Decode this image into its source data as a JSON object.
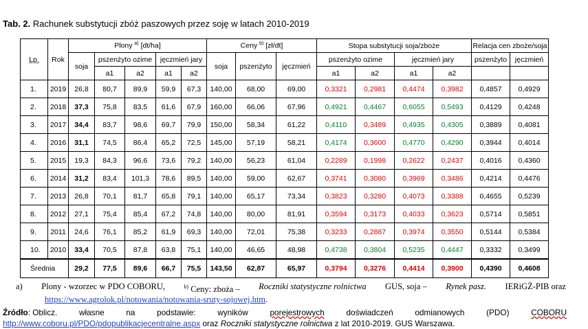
{
  "title": {
    "label": "Tab. 2.",
    "text": "Rachunek substytucji zbóż paszowych przez soję w latach 2010-2019"
  },
  "headers": {
    "lp": "Lp.",
    "rok": "Rok",
    "plony": "Plony",
    "plony_sup": "a)",
    "plony_unit": "[dt/ha]",
    "ceny": "Ceny",
    "ceny_sup": "b)",
    "ceny_unit": "[zł/dt]",
    "stopa": "Stopa substytucji soja/zboże",
    "relacja": "Relacja cen zboże/soja",
    "soja": "soja",
    "pszenzyto_ozime": "pszenżyto ozime",
    "jeczmien_jary": "jęczmień jary",
    "pszenzyto": "pszenżyto",
    "jeczmien": "jęczmień",
    "a1": "a1",
    "a2": "a2"
  },
  "rows": [
    {
      "lp": "1.",
      "rok": "2019",
      "soja": "26,8",
      "po_a1": "80,7",
      "po_a2": "89,9",
      "jj_a1": "59,9",
      "jj_a2": "67,3",
      "c_soja": "140,00",
      "c_psz": "68,00",
      "c_jecz": "69,00",
      "s_po_a1": "0,3321",
      "s_po_a2": "0,2981",
      "s_jj_a1": "0,4474",
      "s_jj_a2": "0,3982",
      "r_psz": "0,4857",
      "r_jecz": "0,4929"
    },
    {
      "lp": "2.",
      "rok": "2018",
      "soja": "37,3",
      "po_a1": "75,8",
      "po_a2": "83,5",
      "jj_a1": "61,6",
      "jj_a2": "67,9",
      "c_soja": "160,00",
      "c_psz": "66,06",
      "c_jecz": "67,96",
      "s_po_a1": "0,4921",
      "s_po_a2": "0,4467",
      "s_jj_a1": "0,6055",
      "s_jj_a2": "0,5493",
      "r_psz": "0,4129",
      "r_jecz": "0,4248"
    },
    {
      "lp": "3.",
      "rok": "2017",
      "soja": "34,4",
      "po_a1": "83,7",
      "po_a2": "98,6",
      "jj_a1": "69,7",
      "jj_a2": "79,9",
      "c_soja": "150,00",
      "c_psz": "58,34",
      "c_jecz": "61,22",
      "s_po_a1": "0,4110",
      "s_po_a2": "0,3489",
      "s_jj_a1": "0,4935",
      "s_jj_a2": "0,4305",
      "r_psz": "0,3889",
      "r_jecz": "0,4081"
    },
    {
      "lp": "4.",
      "rok": "2016",
      "soja": "31,1",
      "po_a1": "74,5",
      "po_a2": "86,4",
      "jj_a1": "65,2",
      "jj_a2": "72,5",
      "c_soja": "145,00",
      "c_psz": "57,19",
      "c_jecz": "58,21",
      "s_po_a1": "0,4174",
      "s_po_a2": "0,3600",
      "s_jj_a1": "0,4770",
      "s_jj_a2": "0,4290",
      "r_psz": "0,3944",
      "r_jecz": "0,4014"
    },
    {
      "lp": "5.",
      "rok": "2015",
      "soja": "19,3",
      "po_a1": "84,3",
      "po_a2": "96,6",
      "jj_a1": "73,6",
      "jj_a2": "79,2",
      "c_soja": "140,00",
      "c_psz": "56,23",
      "c_jecz": "61,04",
      "s_po_a1": "0,2289",
      "s_po_a2": "0,1998",
      "s_jj_a1": "0,2622",
      "s_jj_a2": "0,2437",
      "r_psz": "0,4016",
      "r_jecz": "0,4360"
    },
    {
      "lp": "6.",
      "rok": "2014",
      "soja": "31,2",
      "po_a1": "83,4",
      "po_a2": "101,3",
      "jj_a1": "78,6",
      "jj_a2": "89,5",
      "c_soja": "140,00",
      "c_psz": "59,00",
      "c_jecz": "62,67",
      "s_po_a1": "0,3741",
      "s_po_a2": "0,3080",
      "s_jj_a1": "0,3969",
      "s_jj_a2": "0,3486",
      "r_psz": "0,4214",
      "r_jecz": "0,4476"
    },
    {
      "lp": "7.",
      "rok": "2013",
      "soja": "26,8",
      "po_a1": "70,1",
      "po_a2": "81,7",
      "jj_a1": "65,8",
      "jj_a2": "79,1",
      "c_soja": "140,00",
      "c_psz": "65,17",
      "c_jecz": "73,34",
      "s_po_a1": "0,3823",
      "s_po_a2": "0,3280",
      "s_jj_a1": "0,4073",
      "s_jj_a2": "0,3388",
      "r_psz": "0,4655",
      "r_jecz": "0,5239"
    },
    {
      "lp": "8.",
      "rok": "2012",
      "soja": "27,1",
      "po_a1": "75,4",
      "po_a2": "85,4",
      "jj_a1": "67,2",
      "jj_a2": "74,8",
      "c_soja": "140,00",
      "c_psz": "80,00",
      "c_jecz": "81,91",
      "s_po_a1": "0,3594",
      "s_po_a2": "0,3173",
      "s_jj_a1": "0,4033",
      "s_jj_a2": "0,3623",
      "r_psz": "0,5714",
      "r_jecz": "0,5851"
    },
    {
      "lp": "9.",
      "rok": "2011",
      "soja": "24,6",
      "po_a1": "76,1",
      "po_a2": "85,2",
      "jj_a1": "61,9",
      "jj_a2": "69,3",
      "c_soja": "140,00",
      "c_psz": "72,01",
      "c_jecz": "75,38",
      "s_po_a1": "0,3233",
      "s_po_a2": "0,2887",
      "s_jj_a1": "0,3974",
      "s_jj_a2": "0,3550",
      "r_psz": "0,5144",
      "r_jecz": "0,5384"
    },
    {
      "lp": "10.",
      "rok": "2010",
      "soja": "33,4",
      "po_a1": "70,5",
      "po_a2": "87,8",
      "jj_a1": "63,8",
      "jj_a2": "75,1",
      "c_soja": "140,00",
      "c_psz": "46,65",
      "c_jecz": "48,98",
      "s_po_a1": "0,4738",
      "s_po_a2": "0,3804",
      "s_jj_a1": "0,5235",
      "s_jj_a2": "0,4447",
      "r_psz": "0,3332",
      "r_jecz": "0,3499"
    }
  ],
  "average": {
    "label": "Średnia",
    "soja": "29,2",
    "po_a1": "77,5",
    "po_a2": "89,6",
    "jj_a1": "66,7",
    "jj_a2": "75,5",
    "c_soja": "143,50",
    "c_psz": "62,87",
    "c_jecz": "65,97",
    "s_po_a1": "0,3794",
    "s_po_a2": "0,3276",
    "s_jj_a1": "0,4414",
    "s_jj_a2": "0,3900",
    "r_psz": "0,4390",
    "r_jecz": "0,4608"
  },
  "colors": {
    "below": "#e00000",
    "above": "#00802b"
  },
  "notes": {
    "a_label": "a)",
    "a_text": "Plony - wzorzec w PDO COBORU,",
    "b_sup": "b)",
    "b_text1": "Ceny: zboża –",
    "b_italic1": "Roczniki statystyczne rolnictwa",
    "b_text2": "GUS, soja –",
    "b_italic2": "Rynek pasz.",
    "b_text3": "IERiGŻ-PIB oraz",
    "link": "https://www.agrolok.pl/notowania/notowania-sruty-sojowej.htm",
    "link_end": "."
  },
  "source": {
    "label": "Źródło",
    "words": [
      ": Oblicz.",
      "własne",
      "na",
      "podstawie:",
      "wyników",
      "porejestrowych",
      "doświadczeń",
      "odmianowych",
      "(PDO)",
      "COBORU"
    ],
    "link": "http://www.coboru.pl/PDO/pdopublikacjecentralne.aspx",
    "mid": " oraz ",
    "italic": "Roczniki statystyczne rolnictwa",
    "end": " z lat 2010-2019. GUS Warszawa."
  }
}
